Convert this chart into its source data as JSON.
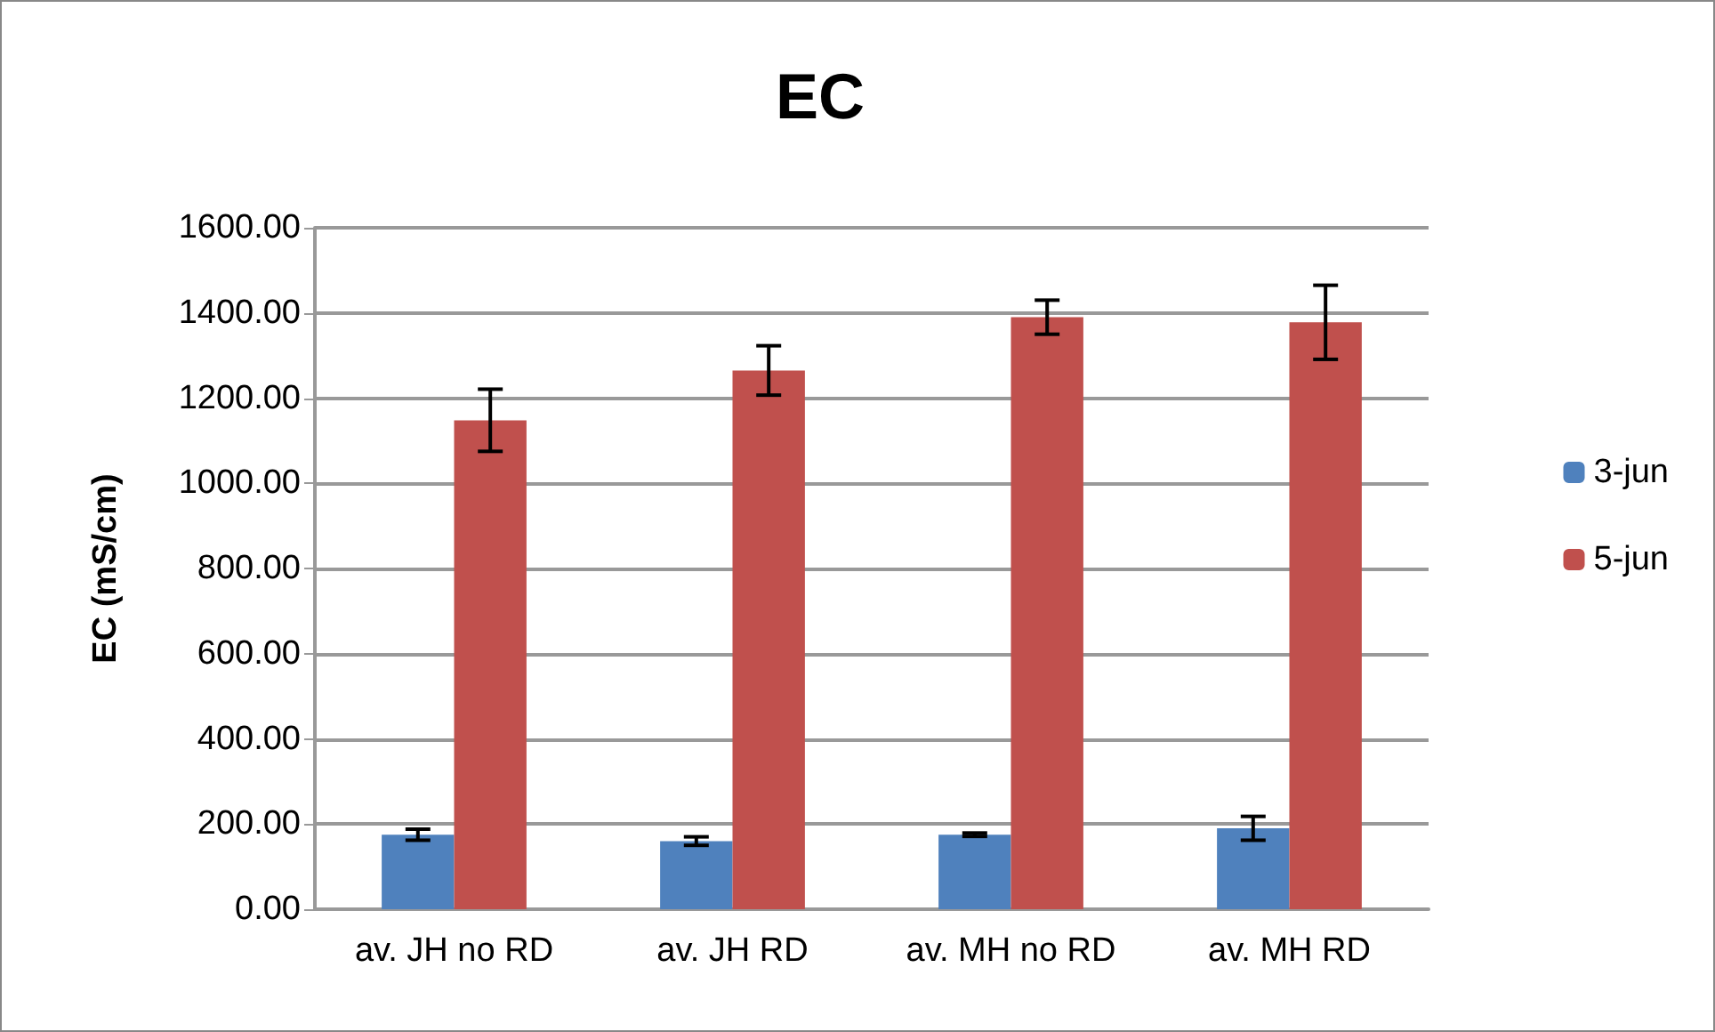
{
  "chart_data": {
    "type": "bar",
    "title": "EC",
    "ylabel": "EC (mS/cm)",
    "categories": [
      "av. JH no RD",
      "av. JH RD",
      "av. MH no RD",
      "av. MH RD"
    ],
    "series": [
      {
        "name": "3-jun",
        "color": "#4f81bd",
        "values": [
          175,
          160,
          175,
          190
        ],
        "errors": [
          13,
          10,
          4,
          28
        ]
      },
      {
        "name": "5-jun",
        "color": "#c0504d",
        "values": [
          1148,
          1265,
          1390,
          1378
        ],
        "errors": [
          73,
          58,
          40,
          87
        ]
      }
    ],
    "ylim": [
      0,
      1600
    ],
    "yticks": [
      {
        "value": 0,
        "label": "0.00"
      },
      {
        "value": 200,
        "label": "200.00"
      },
      {
        "value": 400,
        "label": "400.00"
      },
      {
        "value": 600,
        "label": "600.00"
      },
      {
        "value": 800,
        "label": "800.00"
      },
      {
        "value": 1000,
        "label": "1000.00"
      },
      {
        "value": 1200,
        "label": "1200.00"
      },
      {
        "value": 1400,
        "label": "1400.00"
      },
      {
        "value": 1600,
        "label": "1600.00"
      }
    ],
    "grid": "y",
    "legend": "right"
  }
}
